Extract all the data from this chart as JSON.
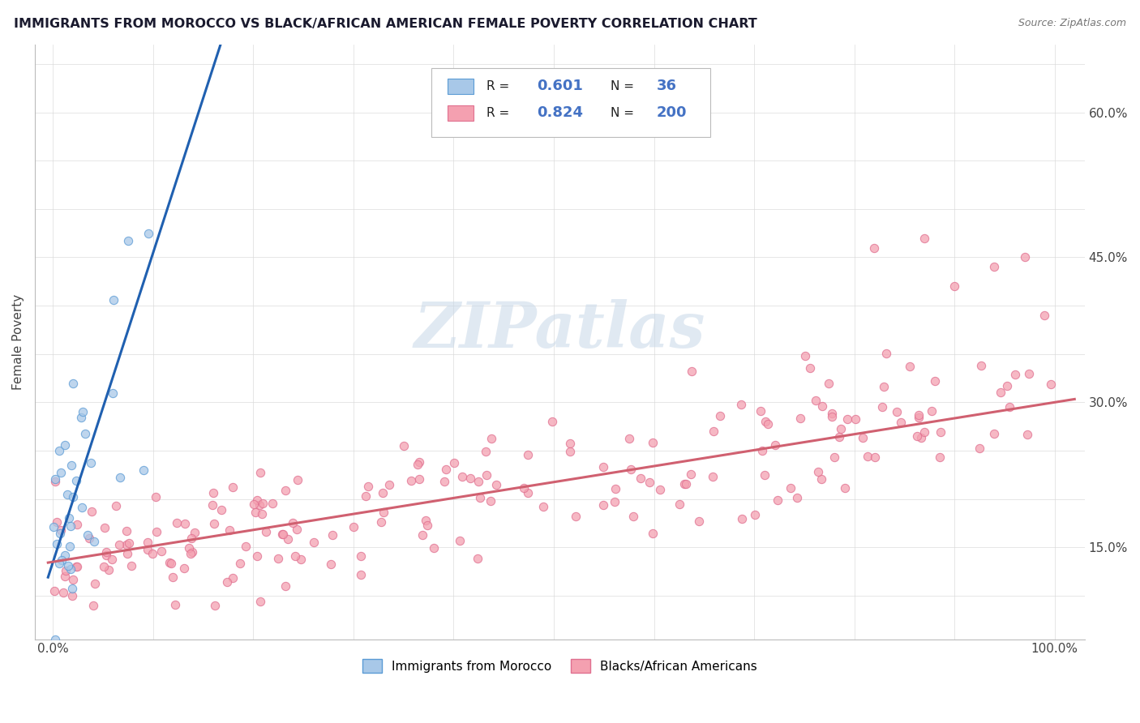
{
  "title": "IMMIGRANTS FROM MOROCCO VS BLACK/AFRICAN AMERICAN FEMALE POVERTY CORRELATION CHART",
  "source_text": "Source: ZipAtlas.com",
  "ylabel": "Female Poverty",
  "legend_1_label": "Immigrants from Morocco",
  "legend_2_label": "Blacks/African Americans",
  "r1": "0.601",
  "n1": "36",
  "r2": "0.824",
  "n2": "200",
  "color_blue_fill": "#a8c8e8",
  "color_blue_edge": "#5b9bd5",
  "color_pink_fill": "#f4a0b0",
  "color_pink_edge": "#e07090",
  "color_blue_line": "#2060b0",
  "color_pink_line": "#d06070",
  "watermark_color": "#c8d8e8",
  "background_color": "#ffffff",
  "grid_color": "#d8d8d8",
  "title_color": "#1a1a2e",
  "source_color": "#777777",
  "legend_text_color": "#222222",
  "legend_val_color": "#4472c4",
  "seed_blue": 7,
  "seed_pink": 99
}
